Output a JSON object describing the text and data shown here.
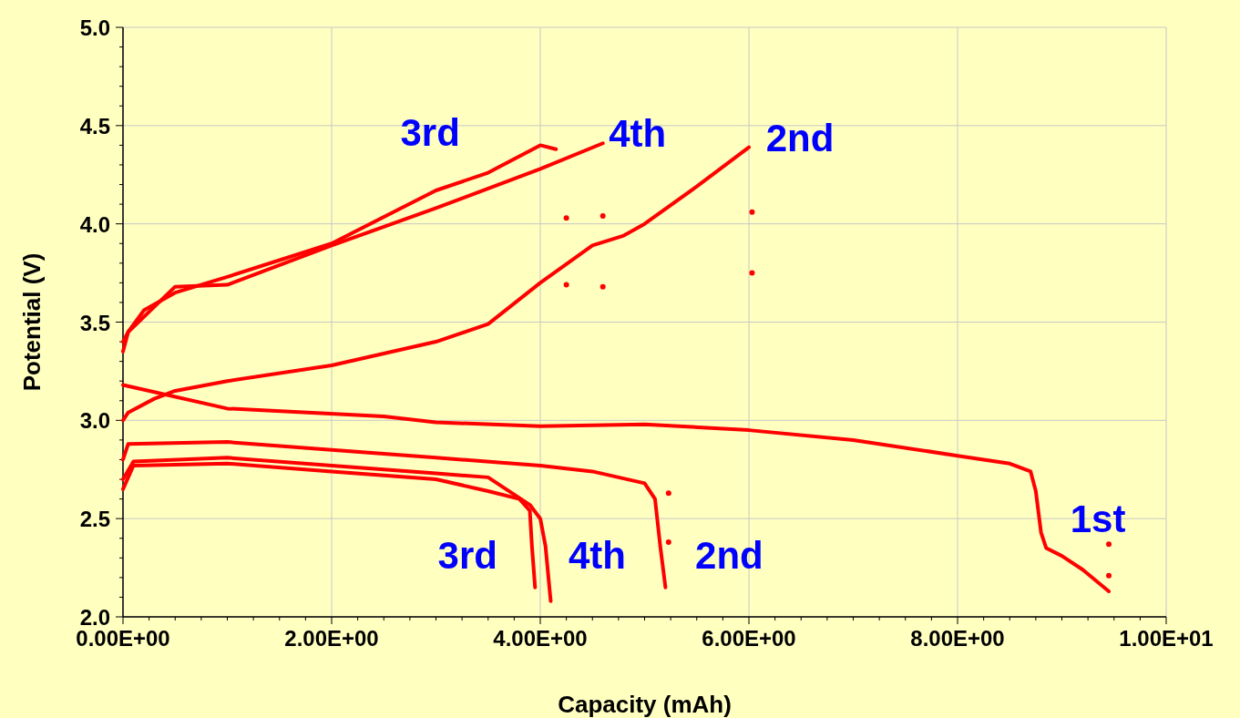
{
  "chart_data": {
    "type": "line",
    "xlabel": "Capacity (mAh)",
    "ylabel": "Potential (V)",
    "xlim": [
      0,
      10
    ],
    "ylim": [
      2,
      5
    ],
    "xticks": [
      {
        "value": 0,
        "label": "0.00E+00"
      },
      {
        "value": 2,
        "label": "2.00E+00"
      },
      {
        "value": 4,
        "label": "4.00E+00"
      },
      {
        "value": 6,
        "label": "6.00E+00"
      },
      {
        "value": 8,
        "label": "8.00E+00"
      },
      {
        "value": 10,
        "label": "1.00E+01"
      }
    ],
    "yticks": [
      {
        "value": 2,
        "label": "2.0"
      },
      2.5,
      {
        "value": 3,
        "label": "3.0"
      },
      3.5,
      {
        "value": 4,
        "label": "4.0"
      },
      4.5,
      {
        "value": 5,
        "label": "5.0"
      }
    ],
    "grid": true,
    "marker": "none",
    "line_style": "solid",
    "series": [
      {
        "name": "1st",
        "color": "#ff0000",
        "x": [
          0,
          1,
          2.5,
          3,
          4,
          5,
          6,
          7,
          8,
          8.5,
          8.7,
          8.75,
          8.8,
          8.85,
          9,
          9.2,
          9.45
        ],
        "values": [
          3.18,
          3.06,
          3.02,
          2.99,
          2.97,
          2.98,
          2.95,
          2.9,
          2.82,
          2.78,
          2.74,
          2.64,
          2.43,
          2.35,
          2.31,
          2.24,
          2.13
        ]
      },
      {
        "name": "2nd",
        "color": "#ff0000",
        "x": [
          0,
          0.05,
          1,
          2,
          3,
          4,
          4.5,
          5,
          5.1,
          5.15,
          5.2
        ],
        "values": [
          2.8,
          2.88,
          2.89,
          2.85,
          2.81,
          2.77,
          2.74,
          2.68,
          2.6,
          2.36,
          2.15
        ]
      },
      {
        "name": "3rd",
        "color": "#ff0000",
        "x": [
          0,
          0.1,
          1,
          2,
          3,
          3.5,
          3.8,
          3.9,
          3.92,
          3.95
        ],
        "values": [
          2.65,
          2.77,
          2.78,
          2.74,
          2.7,
          2.64,
          2.6,
          2.54,
          2.36,
          2.15
        ]
      },
      {
        "name": "4th",
        "color": "#ff0000",
        "x": [
          0,
          0.1,
          1,
          2,
          3,
          3.5,
          3.9,
          4,
          4.05,
          4.1
        ],
        "values": [
          2.7,
          2.79,
          2.81,
          2.77,
          2.73,
          2.71,
          2.57,
          2.5,
          2.36,
          2.08
        ]
      },
      {
        "name": "2nd",
        "color": "#ff0000",
        "x": [
          0,
          0.05,
          0.3,
          0.5,
          1,
          2,
          3,
          3.5,
          4,
          4.5,
          4.8,
          5,
          5.5,
          6
        ],
        "values": [
          3.0,
          3.04,
          3.11,
          3.15,
          3.2,
          3.28,
          3.4,
          3.49,
          3.7,
          3.89,
          3.94,
          4.0,
          4.19,
          4.39
        ]
      },
      {
        "name": "3rd",
        "color": "#ff0000",
        "x": [
          0,
          0.05,
          0.2,
          0.5,
          1,
          2,
          3,
          3.5,
          4,
          4.15
        ],
        "values": [
          3.35,
          3.45,
          3.56,
          3.65,
          3.73,
          3.9,
          4.17,
          4.26,
          4.4,
          4.38
        ]
      },
      {
        "name": "4th",
        "color": "#ff0000",
        "x": [
          0,
          0.05,
          0.5,
          1,
          2,
          3,
          4,
          4.6
        ],
        "values": [
          3.4,
          3.45,
          3.68,
          3.69,
          3.89,
          4.08,
          4.28,
          4.41
        ]
      },
      {
        "type": "scatter",
        "marker": "circle",
        "color": "#ff0000",
        "x": [
          4.25,
          4.6,
          4.25,
          4.6,
          6.03,
          6.03,
          5.23,
          5.23,
          9.45,
          9.45
        ],
        "values": [
          4.03,
          4.04,
          3.69,
          3.68,
          4.06,
          3.75,
          2.63,
          2.38,
          2.37,
          2.21
        ]
      }
    ]
  }
}
